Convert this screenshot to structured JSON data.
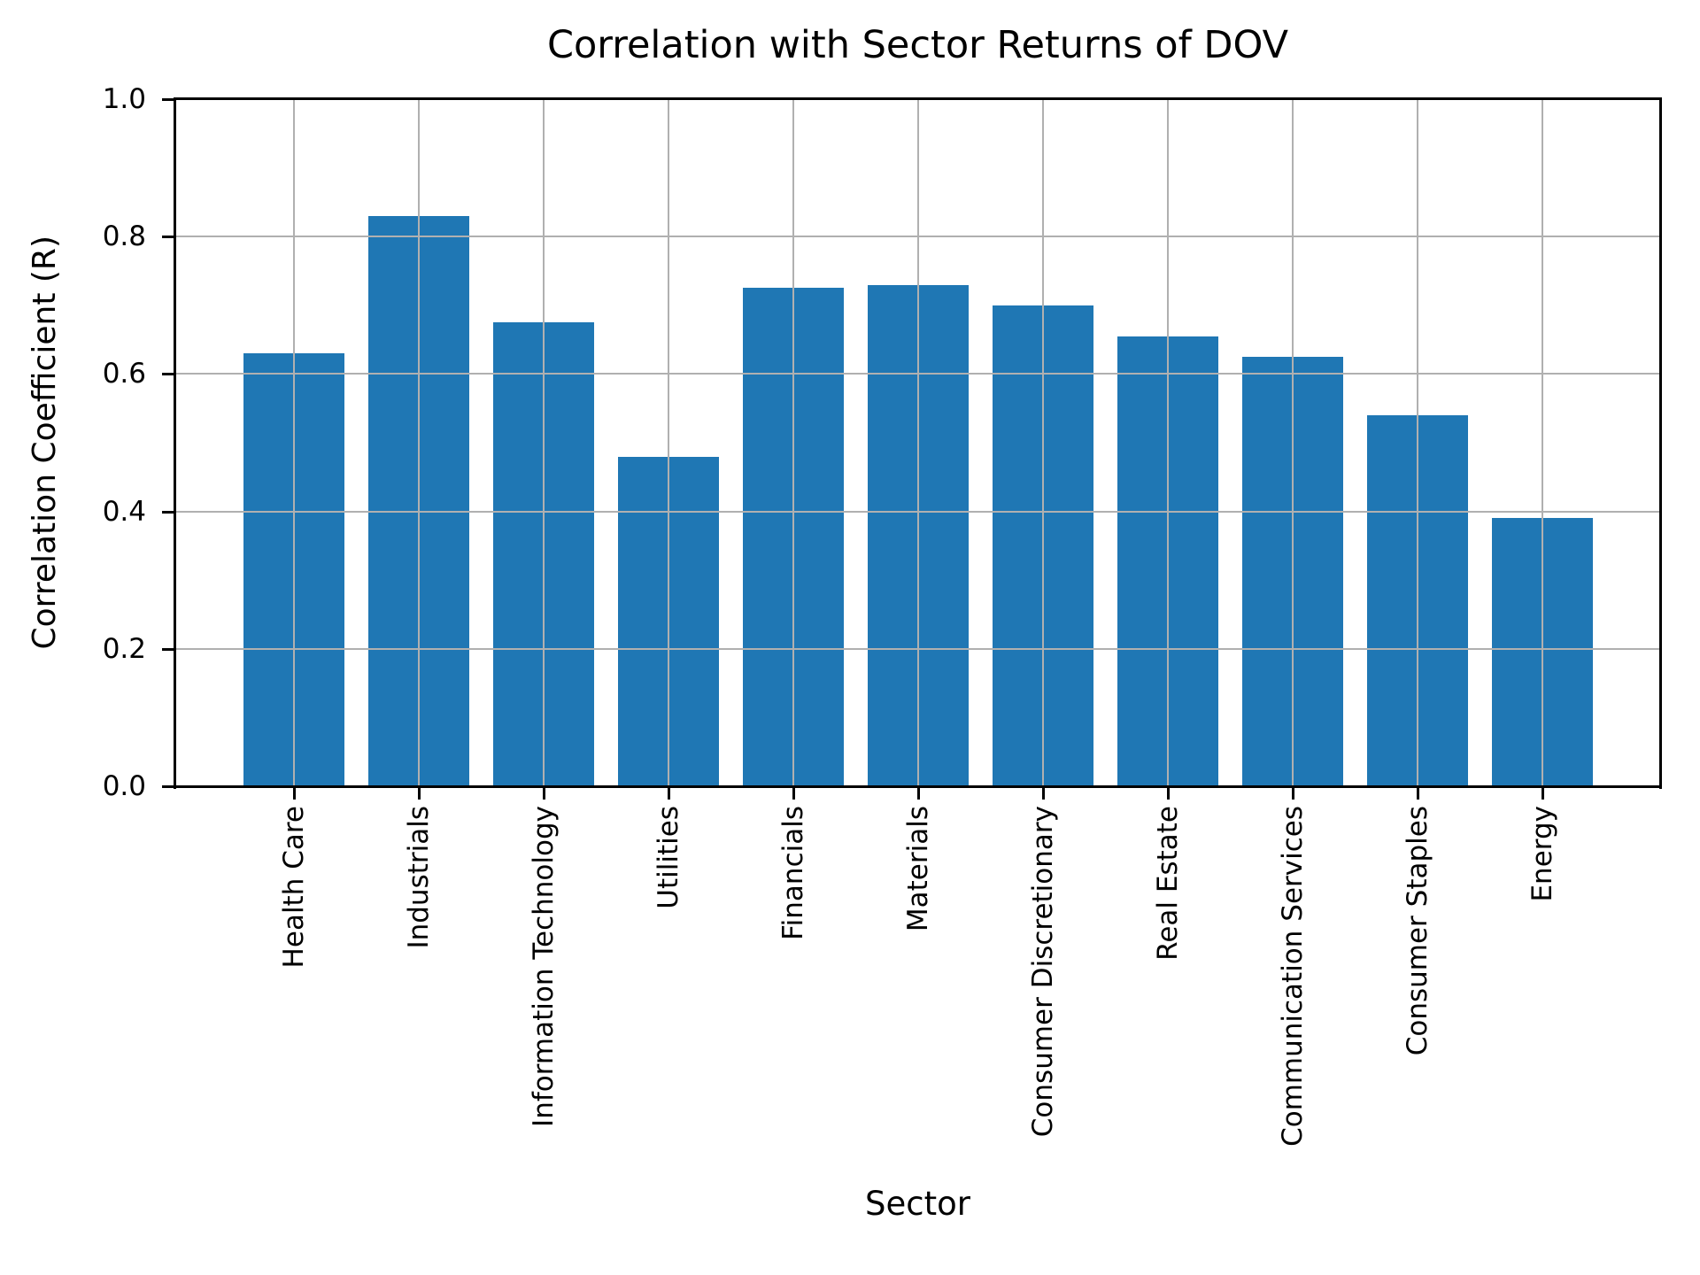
{
  "chart_data": {
    "type": "bar",
    "title": "Correlation with Sector Returns of DOV",
    "xlabel": "Sector",
    "ylabel": "Correlation Coefficient (R)",
    "categories": [
      "Health Care",
      "Industrials",
      "Information Technology",
      "Utilities",
      "Financials",
      "Materials",
      "Consumer Discretionary",
      "Real Estate",
      "Communication Services",
      "Consumer Staples",
      "Energy"
    ],
    "values": [
      0.63,
      0.83,
      0.675,
      0.48,
      0.725,
      0.73,
      0.7,
      0.655,
      0.625,
      0.54,
      0.39
    ],
    "ylim": [
      0.0,
      1.0
    ],
    "ytick_labels": [
      "0.0",
      "0.2",
      "0.4",
      "0.6",
      "0.8",
      "1.0"
    ],
    "ytick_values": [
      0.0,
      0.2,
      0.4,
      0.6,
      0.8,
      1.0
    ],
    "grid": true,
    "legend": "none",
    "bar_color": "#1f77b4",
    "grid_color": "#b0b0b0"
  }
}
